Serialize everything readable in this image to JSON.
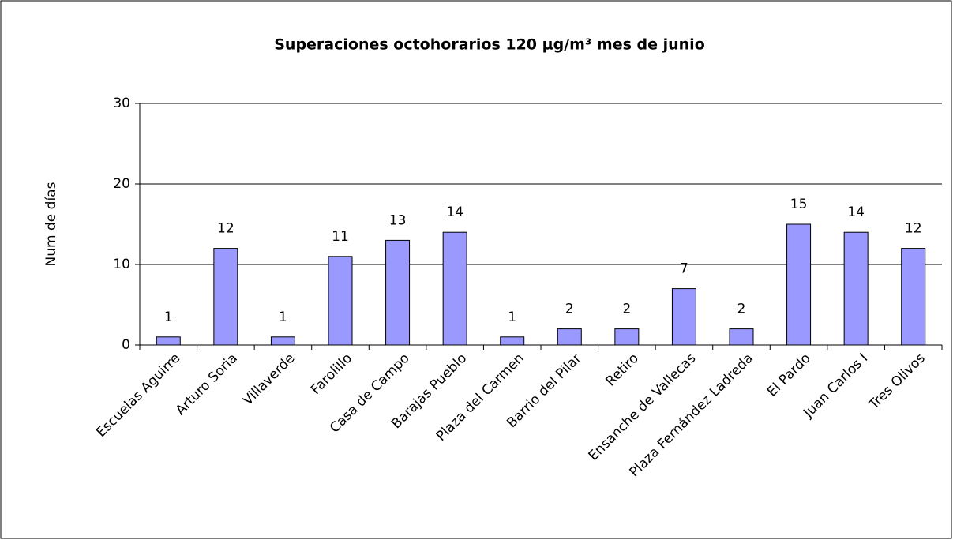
{
  "chart_data": {
    "type": "bar",
    "title": "Superaciones octohorarios 120 µg/m³ mes de junio",
    "y_label": "Num de días",
    "categories": [
      "Escuelas Aguirre",
      "Arturo Soria",
      "Villaverde",
      "Farolillo",
      "Casa de Campo",
      "Barajas Pueblo",
      "Plaza del Carmen",
      "Barrio del Pilar",
      "Retiro",
      "Ensanche de Vallecas",
      "Plaza Fernández Ladreda",
      "El Pardo",
      "Juan Carlos I",
      "Tres Olivos"
    ],
    "values": [
      1,
      12,
      1,
      11,
      13,
      14,
      1,
      2,
      2,
      7,
      2,
      15,
      14,
      12
    ],
    "color": "#9999ff",
    "ylim": [
      0,
      30
    ],
    "yticks": [
      0,
      10,
      20,
      30
    ],
    "grid": true
  }
}
